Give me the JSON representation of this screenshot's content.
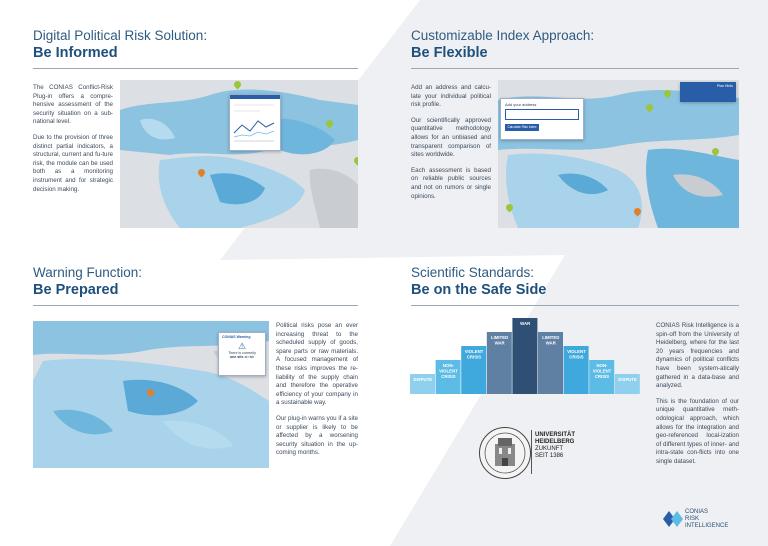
{
  "sections": [
    {
      "id": "informed",
      "subtitle": "Digital Political Risk Solution:",
      "title": "Be Informed",
      "paragraphs": [
        "The CONIAS Conflict-Risk Plug-in offers a compre-hensive assessment of the security situation on a sub-national level.",
        "Due to the provision of three distinct partial indicators, a structural, current and fu-ture risk, the module can be used both as a monitoring instrument and for strategic decision making."
      ]
    },
    {
      "id": "flexible",
      "subtitle": "Customizable Index Approach:",
      "title": "Be Flexible",
      "paragraphs": [
        "Add an address and calcu-late your individual political risk profile.",
        "Our scientifically approved quantitative methodology allows for an unbiased and transparent comparison of sites worldwide.",
        "Each assessment is based on reliable public sources and not on rumors or single opinions."
      ]
    },
    {
      "id": "prepared",
      "subtitle": "Warning Function:",
      "title": "Be Prepared",
      "paragraphs": [
        "Political risks pose an ever increasing threat to the scheduled supply of goods, spare parts or raw materials. A focused management of these risks improves the re-liability of the supply chain and therefore the operative efficiency of your company in a sustainable way.",
        "Our plug-in warns you if a site or supplier is likely to be affected by a worsening security situation in the up-coming months."
      ]
    },
    {
      "id": "scientific",
      "subtitle": "Scientific Standards:",
      "title": "Be on the Safe Side",
      "paragraphs": [
        "CONIAS Risk Intelligence is a spin-off from the University of Heidelberg, where for the last 20 years frequencies and dynamics of political conflicts have been system-atically gathered in a data-base and analyzed.",
        "This is the foundation of our unique quantitative meth-odological approach, which allows for the integration and geo-referenced local-ization of different types of inner- and intra-state con-flicts into one single dataset."
      ]
    }
  ],
  "popups": {
    "flexible": {
      "label": "Add your address",
      "button": "Calculate Risk Index",
      "header": "Plan Hints"
    },
    "prepared": {
      "header": "CONIAS Warning",
      "line1": "There is currently",
      "line2a": "one site",
      "line2b": " at risk"
    }
  },
  "pyramid": {
    "levels": [
      {
        "lines": [
          "DISPUTE"
        ],
        "intensity": 1
      },
      {
        "lines": [
          "NON-",
          "VIOLENT",
          "CRISIS"
        ],
        "intensity": 2
      },
      {
        "lines": [
          "VIOLENT",
          "CRISIS"
        ],
        "intensity": 3
      },
      {
        "lines": [
          "LIMITED",
          "WAR"
        ],
        "intensity": 4
      },
      {
        "lines": [
          "WAR"
        ],
        "intensity": 5
      },
      {
        "lines": [
          "LIMITED",
          "WAR"
        ],
        "intensity": 4
      },
      {
        "lines": [
          "VIOLENT",
          "CRISIS"
        ],
        "intensity": 3
      },
      {
        "lines": [
          "NON-",
          "VIOLENT",
          "CRISIS"
        ],
        "intensity": 2
      },
      {
        "lines": [
          "DISPUTE"
        ],
        "intensity": 1
      }
    ],
    "colors": {
      "1": "#8fd0ee",
      "2": "#5cbce6",
      "3": "#3fa8dc",
      "4": "#5f7fa3",
      "5": "#2f4f74"
    }
  },
  "university": {
    "line1": "UNIVERSITÄT",
    "line2": "HEIDELBERG",
    "line3": "ZUKUNFT",
    "line4": "SEIT 1386"
  },
  "logo": {
    "line1": "CONIAS",
    "line2": "RISK",
    "line3": "INTELLIGENCE"
  }
}
